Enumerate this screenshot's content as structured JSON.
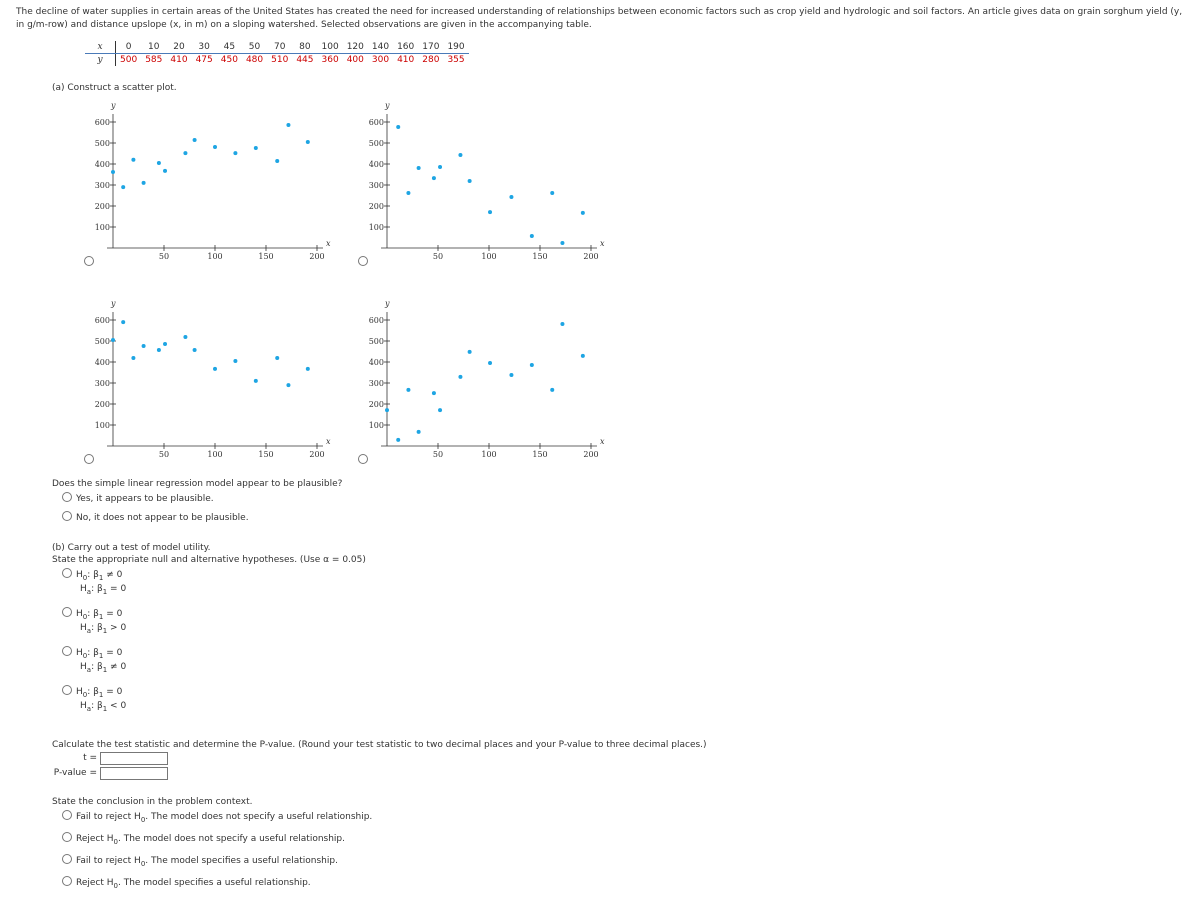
{
  "intro": "The decline of water supplies in certain areas of the United States has created the need for increased understanding of relationships between economic factors such as crop yield and hydrologic and soil factors. An article gives data on grain sorghum yield (y, in g/m-row) and distance upslope (x, in m) on a sloping watershed. Selected observations are given in the accompanying table.",
  "table": {
    "x_label": "x",
    "y_label": "y",
    "x": [
      0,
      10,
      20,
      30,
      45,
      50,
      70,
      80,
      100,
      120,
      140,
      160,
      170,
      190
    ],
    "y": [
      500,
      585,
      410,
      475,
      450,
      480,
      510,
      445,
      360,
      400,
      300,
      410,
      280,
      355
    ]
  },
  "part_a": {
    "label": "(a) Construct a scatter plot.",
    "plots": [
      {
        "x_label": "x",
        "y_label": "y",
        "xlim": [
          0,
          200
        ],
        "ylim": [
          0,
          600
        ],
        "xticks": [
          50,
          100,
          150,
          200
        ],
        "yticks": [
          100,
          200,
          300,
          400,
          500,
          600
        ],
        "color": "#1ea5e3",
        "x": [
          0,
          10,
          20,
          30,
          45,
          51,
          71,
          80,
          100,
          120,
          140,
          161,
          172,
          191
        ],
        "y": [
          362,
          290,
          420,
          310,
          405,
          367,
          452,
          514,
          481,
          452,
          476,
          414,
          586,
          505
        ]
      },
      {
        "x_label": "x",
        "y_label": "y",
        "xlim": [
          0,
          200
        ],
        "ylim": [
          0,
          600
        ],
        "xticks": [
          50,
          100,
          150,
          200
        ],
        "yticks": [
          100,
          200,
          300,
          400,
          500,
          600
        ],
        "color": "#1ea5e3",
        "x": [
          11,
          21,
          31,
          46,
          52,
          72,
          81,
          101,
          122,
          142,
          162,
          172,
          192
        ],
        "y": [
          576,
          262,
          381,
          333,
          386,
          443,
          319,
          171,
          243,
          57,
          262,
          24,
          167
        ]
      },
      {
        "x_label": "x",
        "y_label": "y",
        "xlim": [
          0,
          200
        ],
        "ylim": [
          0,
          600
        ],
        "xticks": [
          50,
          100,
          150,
          200
        ],
        "yticks": [
          100,
          200,
          300,
          400,
          500,
          600
        ],
        "color": "#1ea5e3",
        "x": [
          0,
          10,
          20,
          30,
          45,
          51,
          71,
          80,
          100,
          120,
          140,
          161,
          172,
          191
        ],
        "y": [
          505,
          590,
          419,
          476,
          457,
          486,
          519,
          457,
          367,
          405,
          310,
          419,
          290,
          367
        ]
      },
      {
        "x_label": "x",
        "y_label": "y",
        "xlim": [
          0,
          200
        ],
        "ylim": [
          0,
          600
        ],
        "xticks": [
          50,
          100,
          150,
          200
        ],
        "yticks": [
          100,
          200,
          300,
          400,
          500,
          600
        ],
        "color": "#1ea5e3",
        "x": [
          0,
          11,
          21,
          31,
          46,
          52,
          72,
          81,
          101,
          122,
          142,
          162,
          172,
          192
        ],
        "y": [
          171,
          29,
          267,
          67,
          252,
          171,
          329,
          448,
          395,
          338,
          386,
          267,
          581,
          429
        ]
      }
    ],
    "question": "Does the simple linear regression model appear to be plausible?",
    "options": [
      "Yes, it appears to be plausible.",
      "No, it does not appear to be plausible."
    ]
  },
  "part_b": {
    "label": "(b) Carry out a test of model utility.",
    "instruction": "State the appropriate null and alternative hypotheses. (Use α = 0.05)",
    "hypotheses": [
      [
        [
          "H",
          "0",
          ": β",
          "1",
          " ≠ 0"
        ],
        [
          "H",
          "a",
          ": β",
          "1",
          " = 0"
        ]
      ],
      [
        [
          "H",
          "0",
          ": β",
          "1",
          " = 0"
        ],
        [
          "H",
          "a",
          ": β",
          "1",
          " > 0"
        ]
      ],
      [
        [
          "H",
          "0",
          ": β",
          "1",
          " = 0"
        ],
        [
          "H",
          "a",
          ": β",
          "1",
          " ≠ 0"
        ]
      ],
      [
        [
          "H",
          "0",
          ": β",
          "1",
          " = 0"
        ],
        [
          "H",
          "a",
          ": β",
          "1",
          " < 0"
        ]
      ]
    ],
    "calc_instruction": "Calculate the test statistic and determine the P-value. (Round your test statistic to two decimal places and your P-value to three decimal places.)",
    "t_label": "t =",
    "p_label": "P-value =",
    "conclusion_instruction": "State the conclusion in the problem context.",
    "conclusions": [
      [
        "Fail to reject H",
        "0",
        ". The model does not specify a useful relationship."
      ],
      [
        "Reject H",
        "0",
        ". The model does not specify a useful relationship."
      ],
      [
        "Fail to reject H",
        "0",
        ". The model specifies a useful relationship."
      ],
      [
        "Reject H",
        "0",
        ". The model specifies a useful relationship."
      ]
    ]
  }
}
